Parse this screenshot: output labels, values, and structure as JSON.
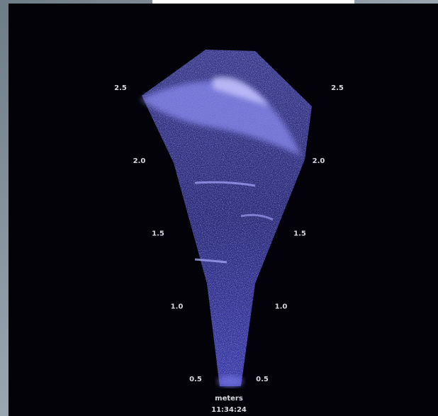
{
  "display": {
    "range_labels": [
      "0.5",
      "1.0",
      "1.5",
      "2.0",
      "2.5"
    ],
    "unit": "meters",
    "time": "11:34:24"
  }
}
